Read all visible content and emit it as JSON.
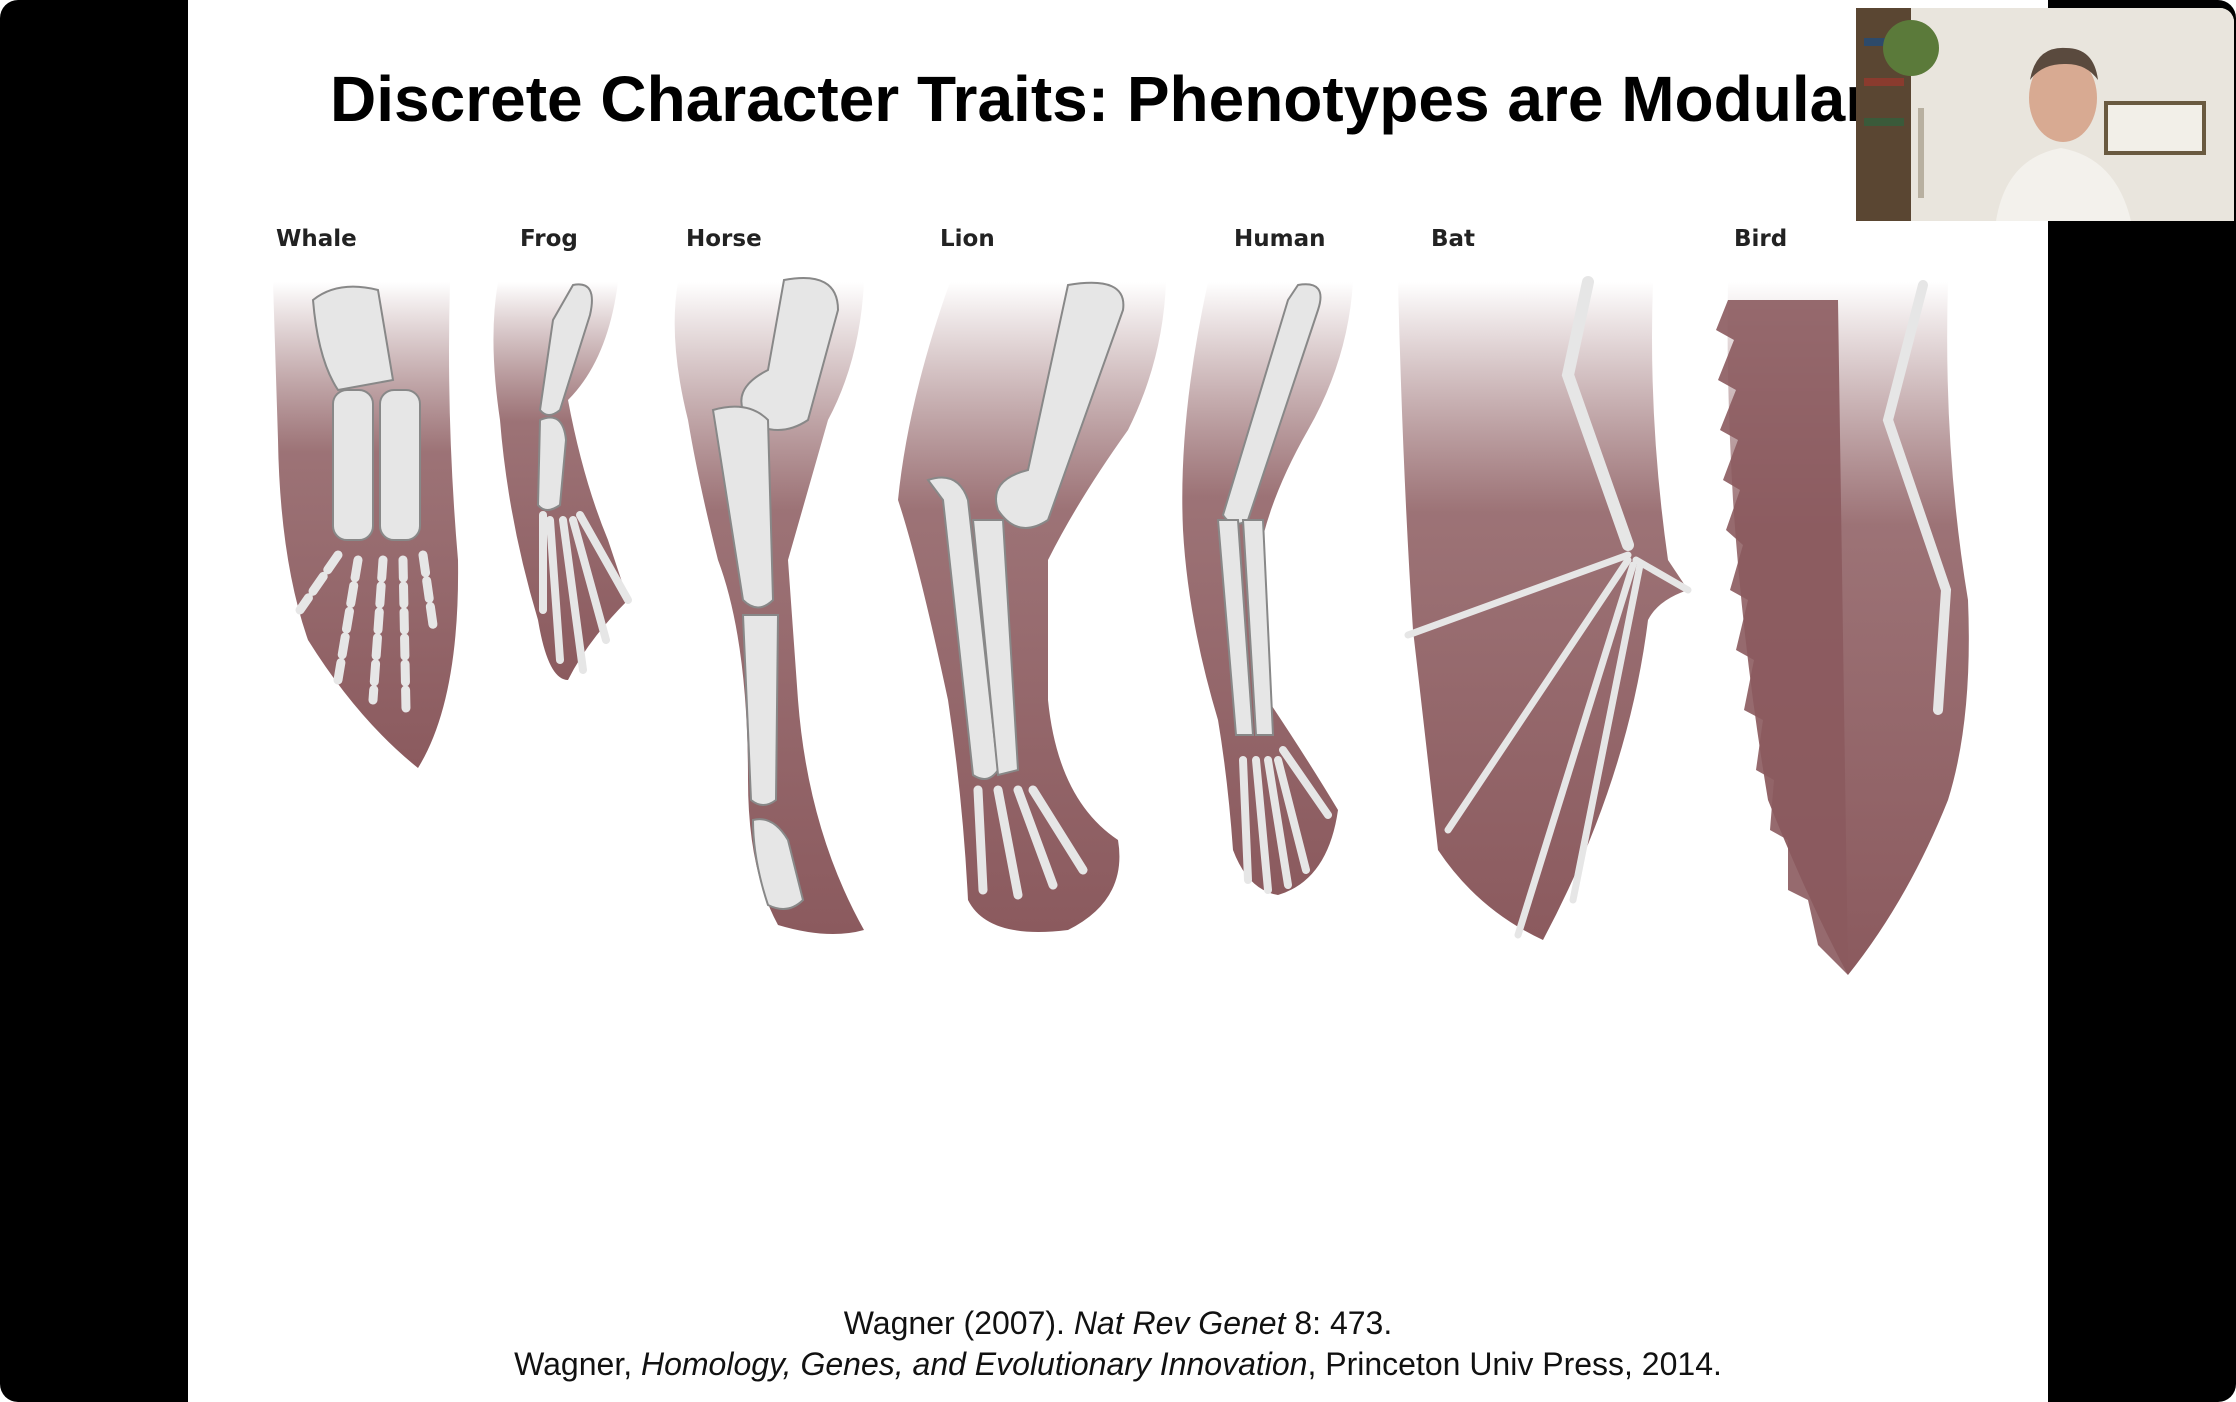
{
  "slide": {
    "title": "Discrete Character Traits: Phenotypes are Modular",
    "animals": [
      "Whale",
      "Frog",
      "Horse",
      "Lion",
      "Human",
      "Bat",
      "Bird"
    ],
    "citation_line1": {
      "part1": "Wagner (2007). ",
      "journal": "Nat Rev Genet",
      "part2": " 8: 473."
    },
    "citation_line2": {
      "part1": "Wagner, ",
      "book": "Homology, Genes, and Evolutionary Innovation",
      "part2": ", Princeton Univ Press, 2014."
    }
  },
  "colors": {
    "limb_fill": "#8b5a5e",
    "bone": "#e6e6e6",
    "slide_bg": "#ffffff",
    "frame_bg": "#000000"
  },
  "webcam": {
    "icon": "person-video-feed"
  }
}
